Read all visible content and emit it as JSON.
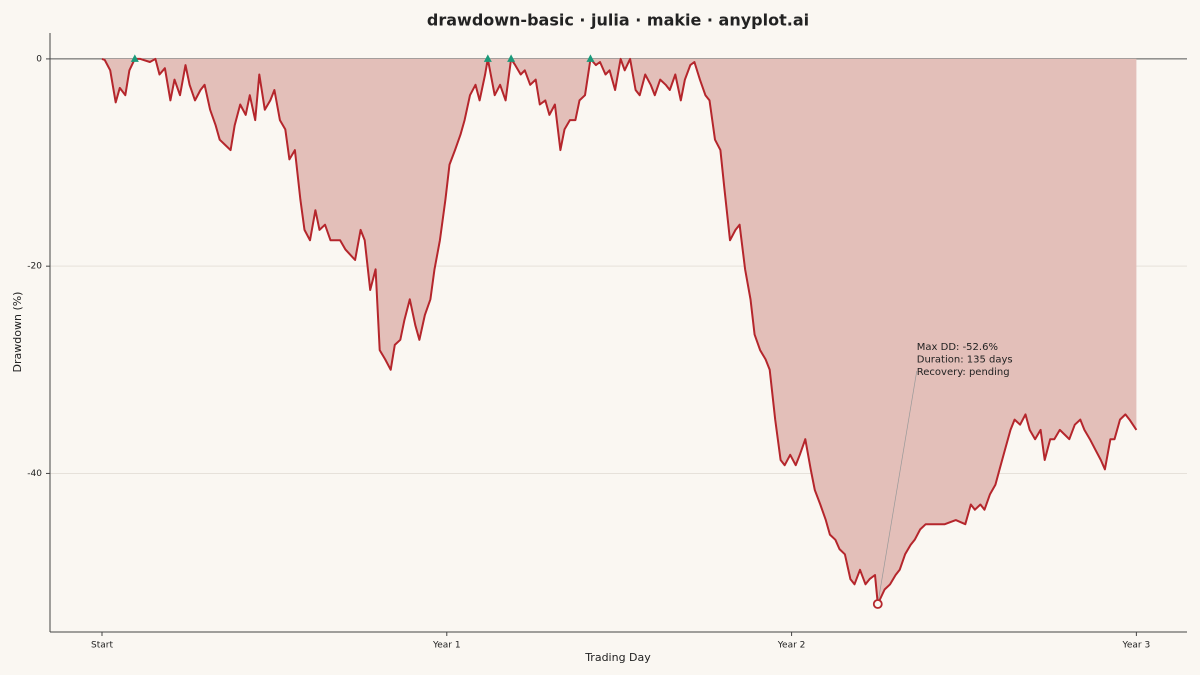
{
  "chart_data": {
    "type": "area",
    "title": "drawdown-basic · julia · makie · anyplot.ai",
    "x_label": "Trading Day",
    "y_label": "Drawdown (%)",
    "xlim": [
      -38,
      793
    ],
    "ylim": [
      -55.3,
      2.5
    ],
    "xticks": [
      {
        "value": 0,
        "label": "Start"
      },
      {
        "value": 252,
        "label": "Year 1"
      },
      {
        "value": 504,
        "label": "Year 2"
      },
      {
        "value": 756,
        "label": "Year 3"
      }
    ],
    "yticks": [
      0,
      -20,
      -40
    ],
    "grid": true,
    "x": [
      0,
      2,
      6,
      10,
      13,
      17,
      20,
      24,
      28,
      35,
      39,
      42,
      46,
      50,
      53,
      57,
      61,
      64,
      68,
      72,
      75,
      79,
      83,
      86,
      90,
      94,
      97,
      101,
      105,
      108,
      112,
      115,
      119,
      123,
      126,
      130,
      134,
      137,
      141,
      145,
      148,
      152,
      156,
      159,
      163,
      167,
      174,
      178,
      185,
      189,
      192,
      196,
      200,
      203,
      207,
      211,
      214,
      218,
      221,
      225,
      229,
      232,
      236,
      240,
      243,
      247,
      251,
      254,
      258,
      262,
      265,
      269,
      273,
      276,
      280,
      282,
      287,
      291,
      295,
      299,
      302,
      306,
      309,
      313,
      317,
      320,
      324,
      327,
      331,
      335,
      338,
      342,
      346,
      349,
      353,
      357,
      361,
      364,
      368,
      371,
      375,
      379,
      382,
      386,
      390,
      393,
      397,
      401,
      404,
      408,
      412,
      415,
      419,
      423,
      426,
      430,
      433,
      437,
      441,
      444,
      448,
      452,
      455,
      459,
      463,
      466,
      470,
      474,
      477,
      481,
      485,
      488,
      492,
      496,
      499,
      503,
      507,
      510,
      514,
      518,
      521,
      525,
      529,
      532,
      536,
      539,
      543,
      547,
      550,
      554,
      558,
      561,
      565,
      567,
      572,
      576,
      580,
      583,
      587,
      591,
      594,
      598,
      602,
      609,
      616,
      624,
      631,
      635,
      638,
      642,
      645,
      649,
      653,
      656,
      660,
      664,
      667,
      671,
      675,
      678,
      682,
      686,
      689,
      693,
      696,
      700,
      704,
      707,
      711,
      715,
      718,
      722,
      726,
      730,
      733,
      737,
      740,
      744,
      748,
      751,
      756
    ],
    "series": [
      {
        "color": "#b5262c",
        "fill": "#e3bfb9",
        "values": [
          0,
          -0.1,
          -1.1,
          -4.2,
          -2.8,
          -3.5,
          -1.1,
          0,
          0,
          -0.3,
          0,
          -1.5,
          -0.9,
          -4.0,
          -2.0,
          -3.5,
          -0.6,
          -2.5,
          -4.0,
          -3.0,
          -2.5,
          -4.9,
          -6.4,
          -7.8,
          -8.3,
          -8.8,
          -6.4,
          -4.4,
          -5.4,
          -3.5,
          -5.9,
          -1.5,
          -4.9,
          -4.0,
          -3.0,
          -5.9,
          -6.8,
          -9.7,
          -8.8,
          -13.6,
          -16.5,
          -17.5,
          -14.6,
          -16.5,
          -16.0,
          -17.5,
          -17.5,
          -18.4,
          -19.4,
          -16.5,
          -17.5,
          -22.3,
          -20.3,
          -28.1,
          -29.0,
          -30.0,
          -27.6,
          -27.1,
          -25.2,
          -23.2,
          -25.7,
          -27.1,
          -24.7,
          -23.2,
          -20.3,
          -17.5,
          -13.6,
          -10.2,
          -8.8,
          -7.3,
          -5.9,
          -3.5,
          -2.5,
          -4.0,
          -1.5,
          0,
          -3.5,
          -2.5,
          -4.0,
          0,
          -0.6,
          -1.5,
          -1.1,
          -2.5,
          -2.0,
          -4.4,
          -4.0,
          -5.4,
          -4.4,
          -8.8,
          -6.8,
          -5.9,
          -5.9,
          -4.0,
          -3.5,
          0,
          -0.6,
          -0.3,
          -1.5,
          -1.1,
          -3.0,
          0,
          -1.1,
          0,
          -3.0,
          -3.5,
          -1.5,
          -2.5,
          -3.5,
          -2.0,
          -2.5,
          -3.0,
          -1.5,
          -4.0,
          -2.0,
          -0.6,
          -0.3,
          -2.0,
          -3.5,
          -4.0,
          -7.8,
          -8.8,
          -12.6,
          -17.5,
          -16.5,
          -16.0,
          -20.3,
          -23.2,
          -26.6,
          -28.1,
          -29.0,
          -30.0,
          -34.8,
          -38.7,
          -39.2,
          -38.2,
          -39.2,
          -38.2,
          -36.7,
          -39.6,
          -41.6,
          -43.0,
          -44.5,
          -45.9,
          -46.4,
          -47.3,
          -47.8,
          -50.2,
          -50.7,
          -49.3,
          -50.7,
          -50.2,
          -49.8,
          -52.6,
          -51.2,
          -50.7,
          -49.8,
          -49.3,
          -47.8,
          -46.9,
          -46.4,
          -45.4,
          -44.9,
          -44.9,
          -44.9,
          -44.5,
          -44.9,
          -43.0,
          -43.5,
          -43.0,
          -43.5,
          -42.0,
          -41.1,
          -39.6,
          -37.7,
          -35.8,
          -34.8,
          -35.3,
          -34.3,
          -35.8,
          -36.7,
          -35.8,
          -38.7,
          -36.7,
          -36.7,
          -35.8,
          -36.3,
          -36.7,
          -35.3,
          -34.8,
          -35.8,
          -36.7,
          -37.7,
          -38.7,
          -39.6,
          -36.7,
          -36.7,
          -34.8,
          -34.3,
          -34.8,
          -35.8
        ]
      }
    ],
    "recovery_points": {
      "color": "#1a9a7a",
      "x": [
        24,
        282,
        299,
        357
      ],
      "values": [
        0,
        0,
        0,
        0
      ]
    },
    "max_drawdown": {
      "color": "#b5262c",
      "x": 567,
      "value": -52.6
    },
    "annotation": [
      "Max DD: -52.6%",
      "Duration: 135 days",
      "Recovery: pending"
    ]
  }
}
